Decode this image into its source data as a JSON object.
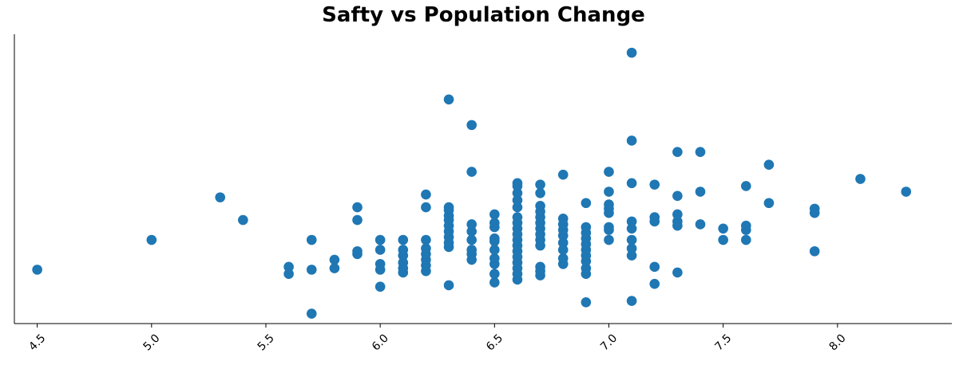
{
  "chart_data": {
    "type": "scatter",
    "title": "Safty vs Population Change",
    "xlabel": "",
    "ylabel": "",
    "xlim": [
      4.4,
      8.5
    ],
    "ylim": [
      -0.6,
      19.8
    ],
    "xticks": [
      "4.5",
      "5.0",
      "5.5",
      "6.0",
      "6.5",
      "7.0",
      "7.5",
      "8.0"
    ],
    "grid": false,
    "marker_color": "#1f77b4",
    "points": [
      [
        4.5,
        3.2
      ],
      [
        5.0,
        5.3
      ],
      [
        5.3,
        8.3
      ],
      [
        5.4,
        6.7
      ],
      [
        5.6,
        2.9
      ],
      [
        5.6,
        3.4
      ],
      [
        5.7,
        0.1
      ],
      [
        5.7,
        3.2
      ],
      [
        5.7,
        5.3
      ],
      [
        5.8,
        3.3
      ],
      [
        5.8,
        3.9
      ],
      [
        5.9,
        4.3
      ],
      [
        5.9,
        4.5
      ],
      [
        5.9,
        6.7
      ],
      [
        5.9,
        7.6
      ],
      [
        6.0,
        2.0
      ],
      [
        6.0,
        3.2
      ],
      [
        6.0,
        3.6
      ],
      [
        6.0,
        4.6
      ],
      [
        6.0,
        5.3
      ],
      [
        6.1,
        3.0
      ],
      [
        6.1,
        3.3
      ],
      [
        6.1,
        3.7
      ],
      [
        6.1,
        4.2
      ],
      [
        6.1,
        4.6
      ],
      [
        6.1,
        5.3
      ],
      [
        6.2,
        3.1
      ],
      [
        6.2,
        3.5
      ],
      [
        6.2,
        3.9
      ],
      [
        6.2,
        4.3
      ],
      [
        6.2,
        4.7
      ],
      [
        6.2,
        5.3
      ],
      [
        6.2,
        7.6
      ],
      [
        6.2,
        8.5
      ],
      [
        6.3,
        2.1
      ],
      [
        6.3,
        4.8
      ],
      [
        6.3,
        5.1
      ],
      [
        6.3,
        5.5
      ],
      [
        6.3,
        5.9
      ],
      [
        6.3,
        6.3
      ],
      [
        6.3,
        6.7
      ],
      [
        6.3,
        7.0
      ],
      [
        6.3,
        7.4
      ],
      [
        6.3,
        7.6
      ],
      [
        6.3,
        15.2
      ],
      [
        6.4,
        3.9
      ],
      [
        6.4,
        4.3
      ],
      [
        6.4,
        4.6
      ],
      [
        6.4,
        5.3
      ],
      [
        6.4,
        5.9
      ],
      [
        6.4,
        6.4
      ],
      [
        6.4,
        10.1
      ],
      [
        6.4,
        13.4
      ],
      [
        6.5,
        2.3
      ],
      [
        6.5,
        2.9
      ],
      [
        6.5,
        3.6
      ],
      [
        6.5,
        4.0
      ],
      [
        6.5,
        4.6
      ],
      [
        6.5,
        5.2
      ],
      [
        6.5,
        5.4
      ],
      [
        6.5,
        6.2
      ],
      [
        6.5,
        6.5
      ],
      [
        6.5,
        7.1
      ],
      [
        6.6,
        2.5
      ],
      [
        6.6,
        2.9
      ],
      [
        6.6,
        3.3
      ],
      [
        6.6,
        3.7
      ],
      [
        6.6,
        4.1
      ],
      [
        6.6,
        4.5
      ],
      [
        6.6,
        4.9
      ],
      [
        6.6,
        5.3
      ],
      [
        6.6,
        5.7
      ],
      [
        6.6,
        6.1
      ],
      [
        6.6,
        6.5
      ],
      [
        6.6,
        6.9
      ],
      [
        6.6,
        7.6
      ],
      [
        6.6,
        8.1
      ],
      [
        6.6,
        8.6
      ],
      [
        6.6,
        9.1
      ],
      [
        6.6,
        9.3
      ],
      [
        6.7,
        2.8
      ],
      [
        6.7,
        3.1
      ],
      [
        6.7,
        3.4
      ],
      [
        6.7,
        4.9
      ],
      [
        6.7,
        5.3
      ],
      [
        6.7,
        5.7
      ],
      [
        6.7,
        6.1
      ],
      [
        6.7,
        6.5
      ],
      [
        6.7,
        6.9
      ],
      [
        6.7,
        7.3
      ],
      [
        6.7,
        7.7
      ],
      [
        6.7,
        8.6
      ],
      [
        6.7,
        9.2
      ],
      [
        6.8,
        3.6
      ],
      [
        6.8,
        4.0
      ],
      [
        6.8,
        4.6
      ],
      [
        6.8,
        5.1
      ],
      [
        6.8,
        5.6
      ],
      [
        6.8,
        6.0
      ],
      [
        6.8,
        6.4
      ],
      [
        6.8,
        6.8
      ],
      [
        6.8,
        9.9
      ],
      [
        6.9,
        0.9
      ],
      [
        6.9,
        2.9
      ],
      [
        6.9,
        3.3
      ],
      [
        6.9,
        3.8
      ],
      [
        6.9,
        4.2
      ],
      [
        6.9,
        4.6
      ],
      [
        6.9,
        5.0
      ],
      [
        6.9,
        5.4
      ],
      [
        6.9,
        5.8
      ],
      [
        6.9,
        6.2
      ],
      [
        6.9,
        7.9
      ],
      [
        7.0,
        5.3
      ],
      [
        7.0,
        6.0
      ],
      [
        7.0,
        6.2
      ],
      [
        7.0,
        7.2
      ],
      [
        7.0,
        7.5
      ],
      [
        7.0,
        7.8
      ],
      [
        7.0,
        8.7
      ],
      [
        7.0,
        10.1
      ],
      [
        7.1,
        1.0
      ],
      [
        7.1,
        4.2
      ],
      [
        7.1,
        4.7
      ],
      [
        7.1,
        5.3
      ],
      [
        7.1,
        6.1
      ],
      [
        7.1,
        6.6
      ],
      [
        7.1,
        9.3
      ],
      [
        7.1,
        12.3
      ],
      [
        7.1,
        18.5
      ],
      [
        7.2,
        2.2
      ],
      [
        7.2,
        3.4
      ],
      [
        7.2,
        6.6
      ],
      [
        7.2,
        6.9
      ],
      [
        7.2,
        9.2
      ],
      [
        7.3,
        3.0
      ],
      [
        7.3,
        6.3
      ],
      [
        7.3,
        6.6
      ],
      [
        7.3,
        7.1
      ],
      [
        7.3,
        8.4
      ],
      [
        7.3,
        11.5
      ],
      [
        7.4,
        6.4
      ],
      [
        7.4,
        8.7
      ],
      [
        7.4,
        11.5
      ],
      [
        7.5,
        5.3
      ],
      [
        7.5,
        6.1
      ],
      [
        7.6,
        5.3
      ],
      [
        7.6,
        6.0
      ],
      [
        7.6,
        6.3
      ],
      [
        7.6,
        9.1
      ],
      [
        7.7,
        7.9
      ],
      [
        7.7,
        10.6
      ],
      [
        7.9,
        4.5
      ],
      [
        7.9,
        7.2
      ],
      [
        7.9,
        7.5
      ],
      [
        8.1,
        9.6
      ],
      [
        8.3,
        8.7
      ]
    ]
  }
}
